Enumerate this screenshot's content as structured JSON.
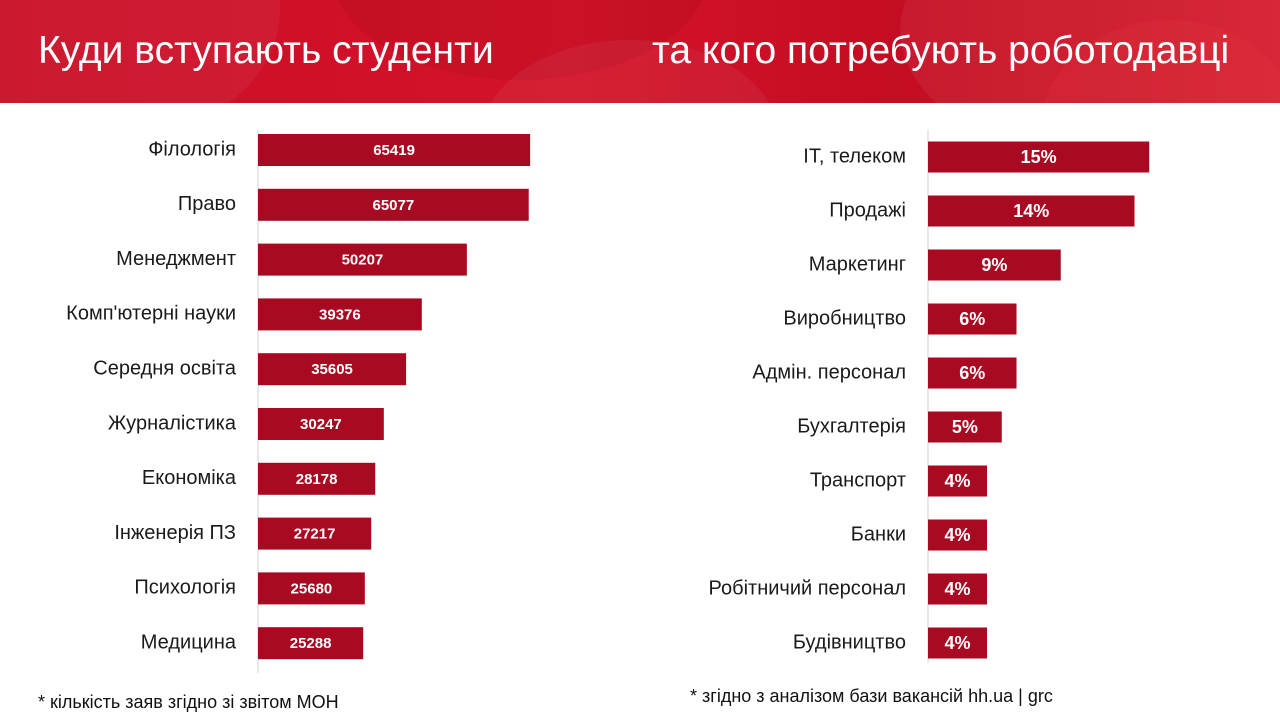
{
  "header": {
    "title_left": "Куди вступають студенти",
    "title_right": "та кого потребують роботодавці",
    "color": "#c90d25"
  },
  "colors": {
    "bar": "#a80a22",
    "axis": "#d0d0d0",
    "label_text": "#1a1a1a"
  },
  "chart_data": [
    {
      "type": "bar",
      "orientation": "horizontal",
      "categories": [
        "Філологія",
        "Право",
        "Менеджмент",
        "Комп'ютерні науки",
        "Середня освіта",
        "Журналістика",
        "Економіка",
        "Інженерія ПЗ",
        "Психологія",
        "Медицина"
      ],
      "values": [
        65419,
        65077,
        50207,
        39376,
        35605,
        30247,
        28178,
        27217,
        25680,
        25288
      ],
      "value_labels": [
        "65419",
        "65077",
        "50207",
        "39376",
        "35605",
        "30247",
        "28178",
        "27217",
        "25680",
        "25288"
      ],
      "xlim": [
        0,
        75000
      ],
      "grid": false,
      "footnote": "* кількість заяв згідно зі звітом МОН"
    },
    {
      "type": "bar",
      "orientation": "horizontal",
      "categories": [
        "IT, телеком",
        "Продажі",
        "Маркетинг",
        "Виробництво",
        "Адмін. персонал",
        "Бухгалтерія",
        "Транспорт",
        "Банки",
        "Робітничий персонал",
        "Будівництво"
      ],
      "values": [
        15,
        14,
        9,
        6,
        6,
        5,
        4,
        4,
        4,
        4
      ],
      "value_labels": [
        "15%",
        "14%",
        "9%",
        "6%",
        "6%",
        "5%",
        "4%",
        "4%",
        "4%",
        "4%"
      ],
      "xlim": [
        0,
        20
      ],
      "grid": false,
      "footnote": "* згідно з аналізом бази вакансій hh.ua | grc"
    }
  ]
}
